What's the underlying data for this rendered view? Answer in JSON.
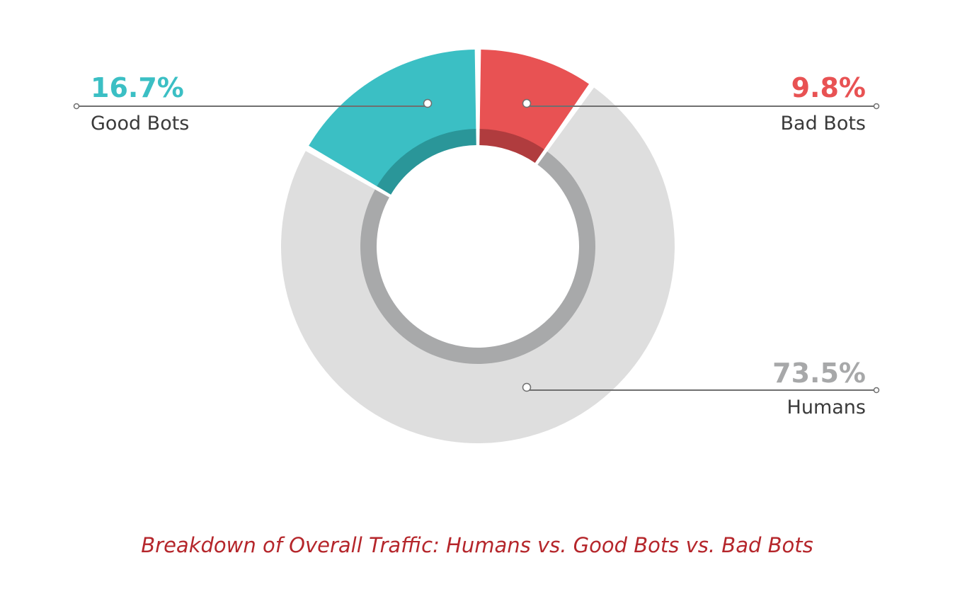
{
  "chart_data": {
    "type": "pie",
    "title": "Breakdown of Overall Traffic: Humans vs. Good Bots vs. Bad Bots",
    "series": [
      {
        "name": "Bad Bots",
        "value": 9.8,
        "value_label": "9.8%",
        "color": "#e85253",
        "inner_color": "#b03c3e"
      },
      {
        "name": "Humans",
        "value": 73.5,
        "value_label": "73.5%",
        "color": "#dedede",
        "inner_color": "#a8a9aa",
        "label_color": "#a7a8a9"
      },
      {
        "name": "Good Bots",
        "value": 16.7,
        "value_label": "16.7%",
        "color": "#3bbfc4",
        "inner_color": "#2a9699"
      }
    ],
    "legend": "callouts"
  }
}
